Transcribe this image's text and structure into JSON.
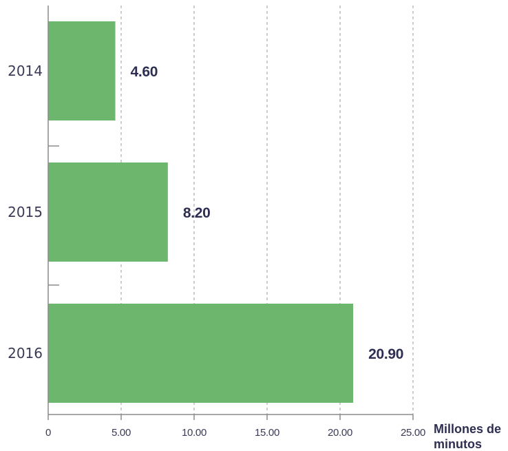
{
  "chart_data": {
    "type": "bar",
    "orientation": "horizontal",
    "categories": [
      "2014",
      "2015",
      "2016"
    ],
    "values": [
      4.6,
      8.2,
      20.9
    ],
    "value_labels": [
      "4.60",
      "8.20",
      "20.90"
    ],
    "title": "",
    "xlabel": "Millones de minutos",
    "xlabel_lines": [
      "Millones de",
      "minutos"
    ],
    "ylabel": "",
    "xlim": [
      0,
      25
    ],
    "xticks": [
      0,
      5,
      10,
      15,
      20,
      25
    ],
    "xtick_labels": [
      "0",
      "5.00",
      "10.00",
      "15.00",
      "20.00",
      "25.00"
    ],
    "grid": "vertical dashed",
    "legend": "none",
    "colors": {
      "bar": "#6db66d",
      "grid": "#9a9a9a",
      "axis": "#8a8a8a",
      "text": "#3a3a56",
      "value_text": "#2e2e52"
    }
  }
}
